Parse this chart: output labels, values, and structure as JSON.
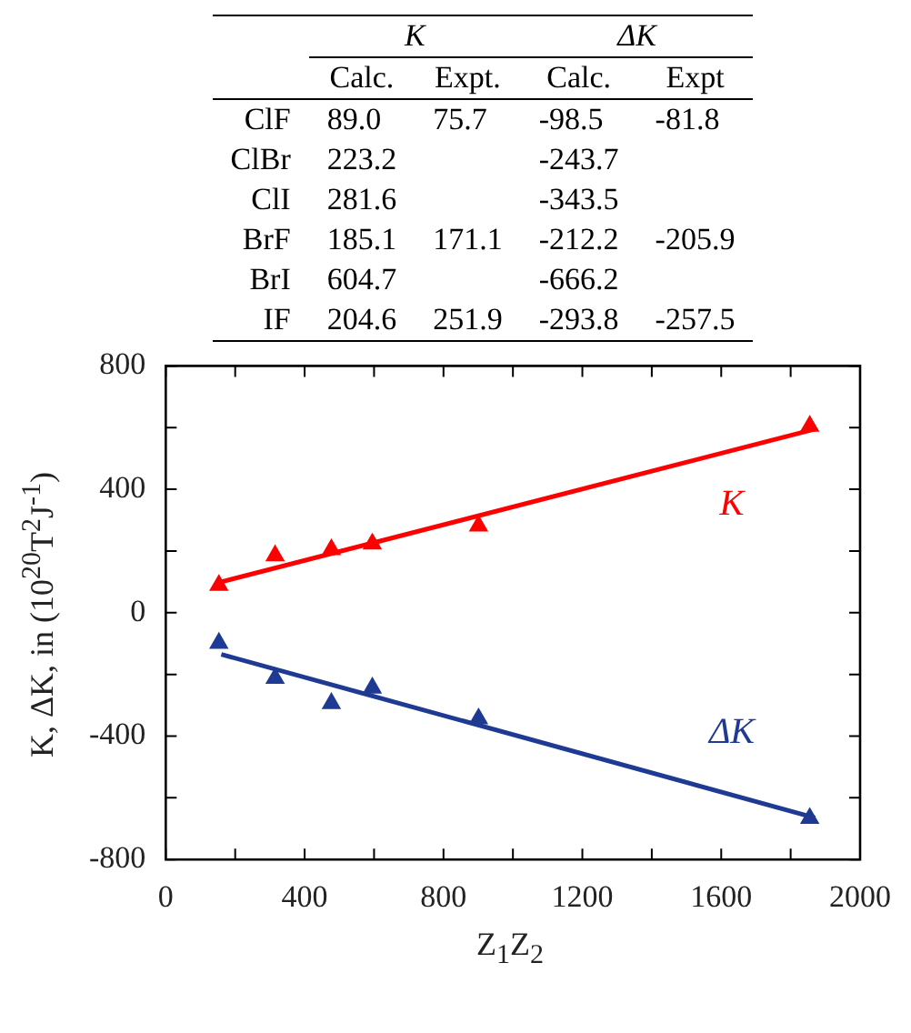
{
  "chart_data": [
    {
      "type": "other",
      "annotations": [
        "K",
        "ΔK"
      ],
      "categories": [
        "ClF",
        "ClBr",
        "ClI",
        "BrF",
        "BrI",
        "IF"
      ],
      "series": [
        {
          "name": "Calc.",
          "values": [
            89.0,
            223.2,
            281.6,
            185.1,
            604.7,
            204.6
          ],
          "value_labels": [
            "89.0",
            "223.2",
            "281.6",
            "185.1",
            "604.7",
            "204.6"
          ]
        },
        {
          "name": "Expt.",
          "values": [
            75.7,
            null,
            null,
            171.1,
            null,
            251.9
          ],
          "value_labels": [
            "75.7",
            null,
            null,
            "171.1",
            null,
            "251.9"
          ]
        },
        {
          "name": "Calc.",
          "values": [
            -98.5,
            -243.7,
            -343.5,
            -212.2,
            -666.2,
            -293.8
          ],
          "value_labels": [
            "-98.5",
            "-243.7",
            "-343.5",
            "-212.2",
            "-666.2",
            "-293.8"
          ]
        },
        {
          "name": "Expt",
          "values": [
            -81.8,
            null,
            null,
            -205.9,
            null,
            -257.5
          ],
          "value_labels": [
            "-81.8",
            null,
            null,
            "-205.9",
            null,
            "-257.5"
          ]
        }
      ]
    },
    {
      "type": "scatter",
      "xlabel": "Z$_{1}$Z$_{2}$",
      "ylabel": "K, ΔK, in (10$^{20}$T$^{2}$J$^{-1}$)",
      "xlim": [
        0,
        2000
      ],
      "xticks": [
        0,
        400,
        800,
        1200,
        1600,
        2000
      ],
      "ylim": [
        -800,
        800
      ],
      "yticks": [
        -800,
        -400,
        0,
        400,
        800
      ],
      "annotations": [
        "K",
        "ΔK"
      ],
      "series": [
        {
          "color": "#ff0000",
          "marker": "triangle",
          "x": [
            153,
            595,
            901,
            315,
            1855,
            477
          ],
          "values": [
            89.0,
            223.2,
            281.6,
            185.1,
            604.7,
            204.6
          ]
        },
        {
          "color": "#1f3a93",
          "marker": "triangle",
          "x": [
            153,
            595,
            901,
            315,
            1855,
            477
          ],
          "values": [
            -98.5,
            -243.7,
            -343.5,
            -212.2,
            -666.2,
            -293.8
          ]
        },
        {
          "type": "line",
          "color": "#ff0000",
          "marker": "none",
          "x": [
            160,
            1870
          ],
          "values": [
            100,
            595
          ]
        },
        {
          "type": "line",
          "color": "#1f3a93",
          "marker": "none",
          "x": [
            160,
            1870
          ],
          "values": [
            -135,
            -665
          ]
        }
      ]
    }
  ]
}
